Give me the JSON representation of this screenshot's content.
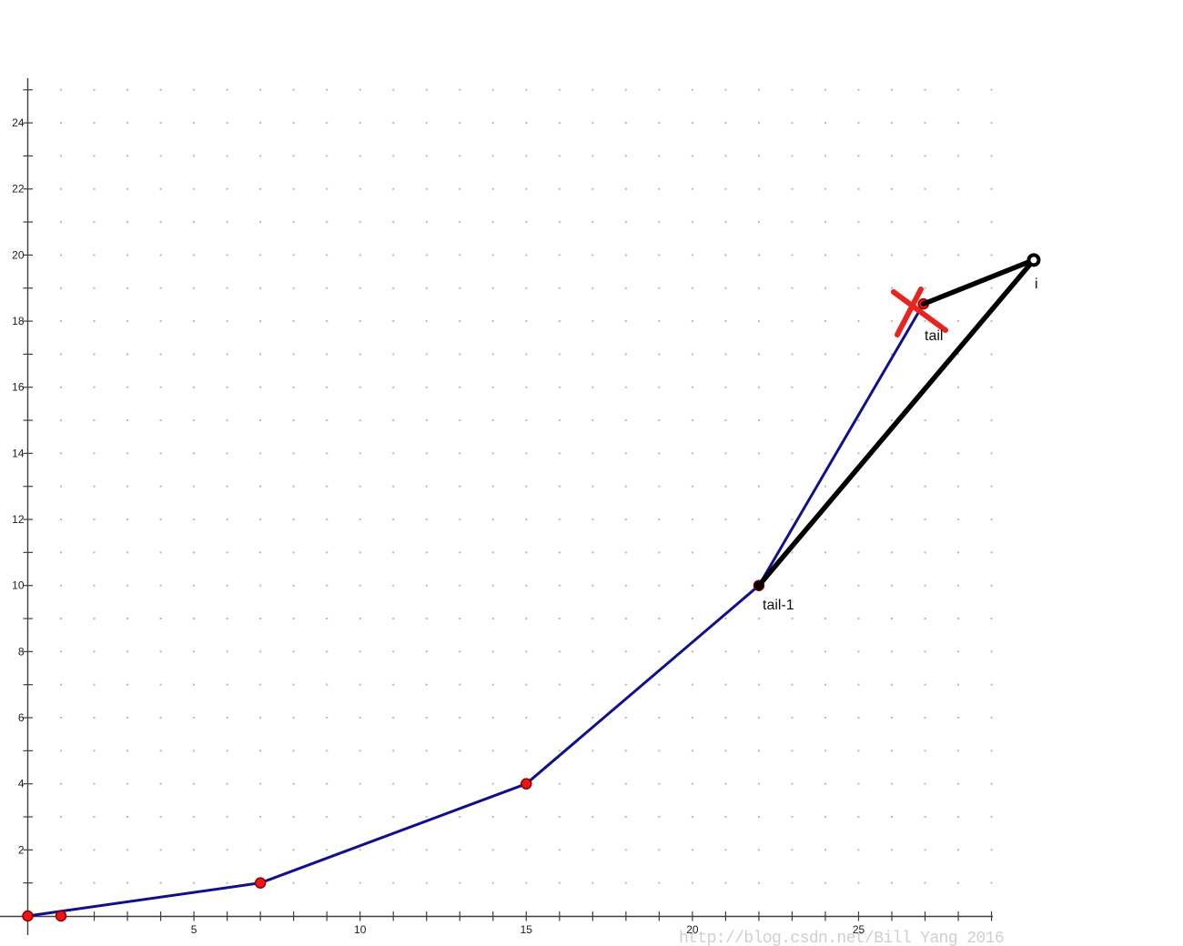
{
  "chart_data": {
    "type": "line",
    "title": "",
    "xlabel": "",
    "ylabel": "",
    "description": "Convex hull (monotone chain) step illustration: candidate point i makes a non-left turn at tail, so tail is crossed out (red X) and new edges join tail-1 and tail to i",
    "x_range": [
      0,
      29
    ],
    "y_range": [
      0,
      25
    ],
    "x_tick_step": 1,
    "y_tick_step": 1,
    "x_labeled_ticks": [
      5,
      10,
      15,
      20,
      25
    ],
    "y_labeled_ticks": [
      2,
      4,
      6,
      8,
      10,
      12,
      14,
      16,
      18,
      20,
      22,
      24
    ],
    "grid": "small gray dot at every integer lattice point, x 1-29, y 1-25",
    "legend": null,
    "hull_chain_points": [
      [
        0,
        0
      ],
      [
        7,
        1
      ],
      [
        15,
        4
      ],
      [
        22,
        10
      ],
      [
        26.95,
        18.52
      ]
    ],
    "data_points": [
      [
        0,
        0
      ],
      [
        1,
        0
      ],
      [
        7,
        1
      ],
      [
        15,
        4
      ],
      [
        22,
        10
      ],
      [
        26.95,
        18.52
      ]
    ],
    "candidate_point_i": [
      30.27,
      19.85
    ],
    "new_edge_segments": [
      [
        [
          22,
          10
        ],
        [
          30.27,
          19.85
        ]
      ],
      [
        [
          26.95,
          18.52
        ],
        [
          30.27,
          19.85
        ]
      ]
    ],
    "rejected_cross_at": [
      26.95,
      18.52
    ],
    "cross_strokes_px": [
      [
        [
          982,
          321
        ],
        [
          1039,
          363
        ]
      ],
      [
        [
          1012,
          318
        ],
        [
          986,
          368
        ]
      ]
    ],
    "annotations": [
      {
        "text": "tail",
        "at_point": [
          26.95,
          18.52
        ]
      },
      {
        "text": "tail-1",
        "at_point": [
          22,
          10
        ]
      },
      {
        "text": "i",
        "at_point": [
          30.27,
          19.85
        ]
      }
    ]
  },
  "watermark": {
    "text": "http://blog.csdn.net/Bill Yang 2016"
  },
  "colors": {
    "background": "#ffffff",
    "hull_line": "#10108c",
    "new_edge": "#000000",
    "point_fill": "#ee1515",
    "point_edge": "#8b0000",
    "black_dot": "#000000",
    "open_circle_stroke": "#000000",
    "cross": "#e62420",
    "axis": "#3f3f3f",
    "grid_dot": "#b9b9b9",
    "tick_label": "#1c1c1c",
    "annotation_text": "#101010",
    "watermark": "#cfcfcf"
  }
}
